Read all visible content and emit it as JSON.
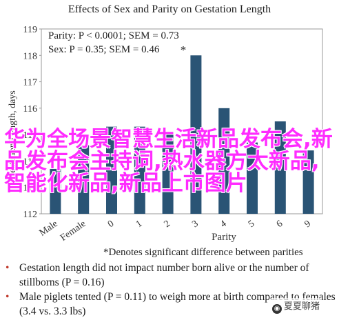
{
  "chart_data": {
    "type": "bar",
    "title": "Effects of Sex and Parity on Gestation Length",
    "ylabel": "Gestation Length, days",
    "xlabel": "Parity",
    "ylim": [
      112,
      119
    ],
    "yticks": [
      112,
      113,
      114,
      115,
      116,
      117,
      118,
      119
    ],
    "categories": [
      "Male",
      "Female",
      "0",
      "1",
      "2",
      "3",
      "4",
      "5",
      "6",
      "9"
    ],
    "values": [
      113.7,
      114.6,
      115.3,
      115.3,
      115.0,
      118.0,
      116.0,
      114.7,
      115.5,
      114.4
    ],
    "bar_color": "#2a5475",
    "annotations": {
      "stats_line1": "Parity: P < 0.0001; SEM = 0.73",
      "stats_line2": "Sex: P = 0.35; SEM = 0.46",
      "star": "*",
      "footnote": "*Denotes significant difference between parities"
    }
  },
  "overlay_text": "华为全场景智慧生活新品发布会,新品发布会主持词,热水器方太新品,智能化新品,新品上市图片",
  "notes": [
    {
      "bullet": "•",
      "text": "Gestation length did not impact number born alive or the number of stillborns (P = 0.16)"
    },
    {
      "bullet": "•",
      "text": "Male piglets tented (P = 0.11) to weigh more at birth compared to females (3.4 vs. 3.3 lbs)"
    }
  ],
  "watermark": "夏夏聊猪"
}
